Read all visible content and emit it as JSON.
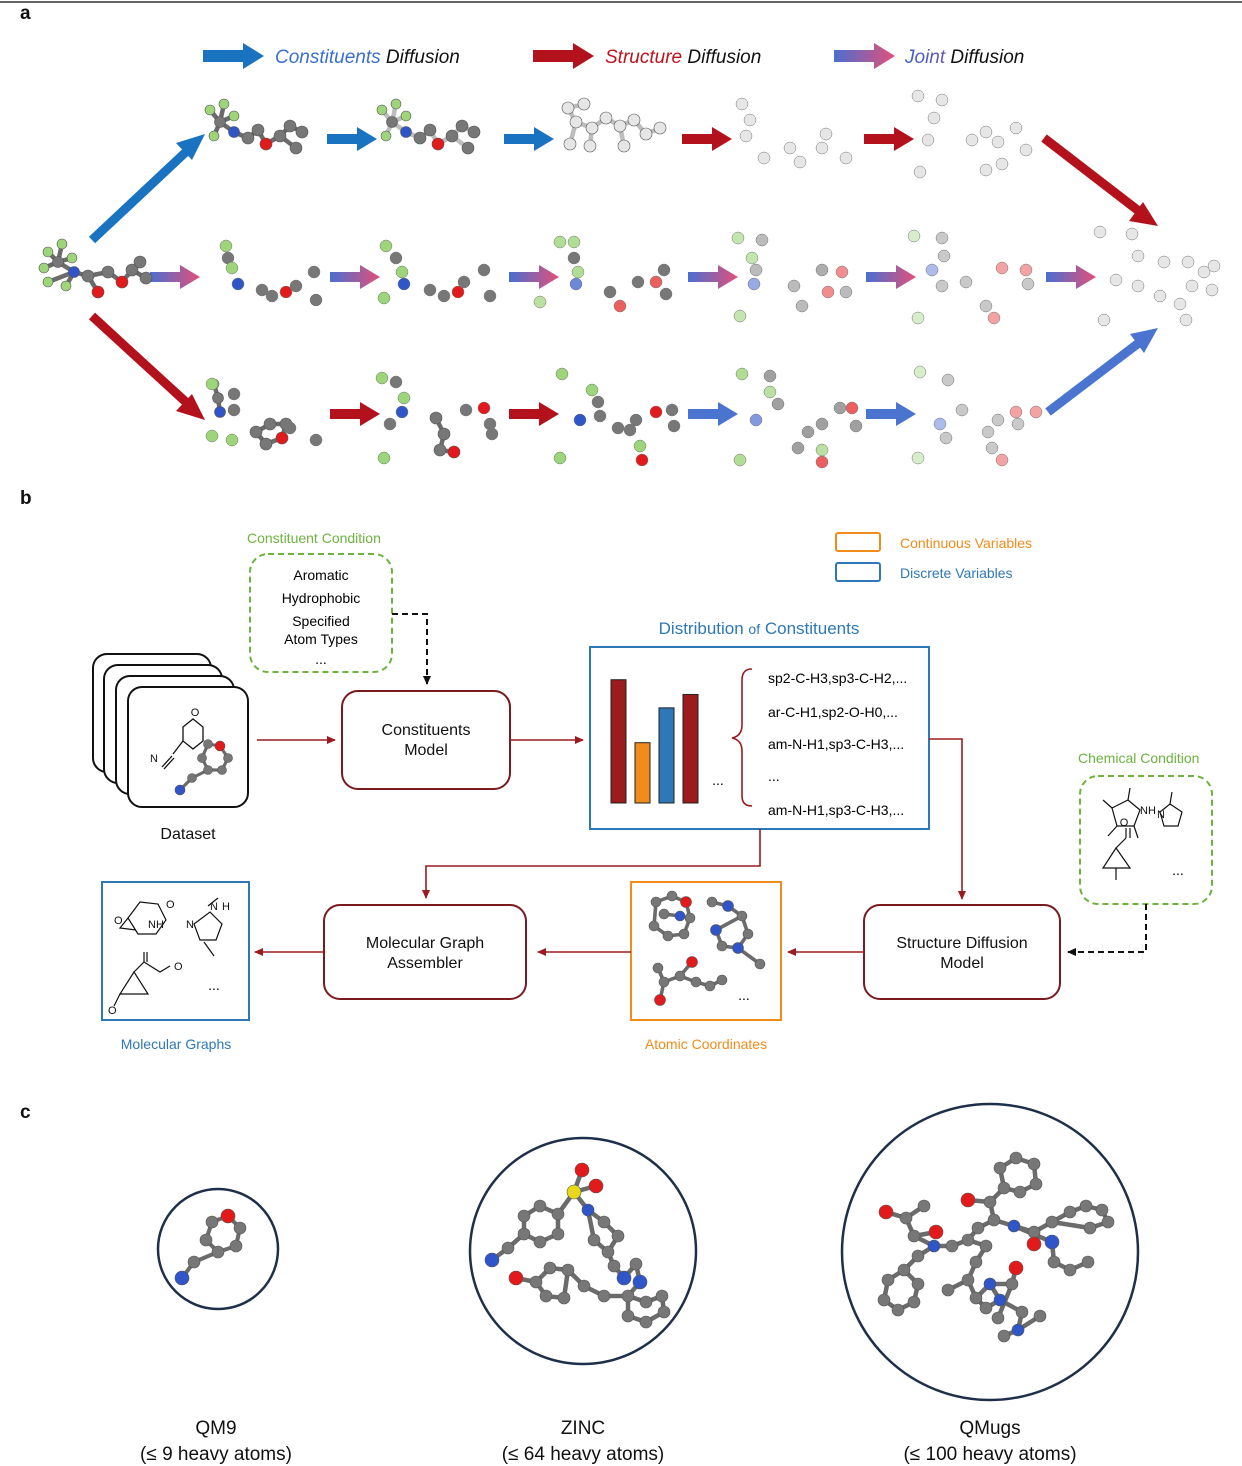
{
  "panels": {
    "a": "a",
    "b": "b",
    "c": "c"
  },
  "legend": {
    "constituents": {
      "italic": "Constituents",
      "plain": " Diffusion",
      "color": "#3a6fcf"
    },
    "structure": {
      "italic": "Structure",
      "plain": " Diffusion",
      "color": "#c0121e"
    },
    "joint": {
      "italic": "Joint",
      "plain": " Diffusion",
      "color": "#5a5fc8"
    }
  },
  "colors": {
    "constituent_arrow": "#1a73c1",
    "structure_arrow": "#b3121c",
    "box_border": "#7a1a1e",
    "continuous": "#f08c1a",
    "discrete": "#2f78b7",
    "condition_green": "#6db33f",
    "carbon": "#777777",
    "fluorine": "#9ed47a",
    "oxygen": "#e31a1c",
    "nitrogen": "#2f55c9",
    "sulfur": "#e6d91a"
  },
  "panel_b": {
    "constituent_condition": {
      "title": "Constituent Condition",
      "items": [
        "Aromatic",
        "Hydrophobic",
        "Specified",
        "Atom Types",
        "..."
      ]
    },
    "variable_legend": {
      "continuous": "Continuous Variables",
      "discrete": "Discrete Variables"
    },
    "dataset_label": "Dataset",
    "dataset_mol_label": "N",
    "constituents_model": [
      "Constituents",
      "Model"
    ],
    "distribution": {
      "title_prefix": "Distribution ",
      "title_of": "of",
      "title_suffix": " Constituents",
      "bar_values": [
        0.92,
        0.45,
        0.71,
        0.81
      ],
      "bar_colors": [
        "#9b1b1e",
        "#f08c1a",
        "#2f78b7",
        "#9b1b1e"
      ],
      "bar_ellipsis": "...",
      "entries": [
        "sp2-C-H3,sp3-C-H2,...",
        "ar-C-H1,sp2-O-H0,...",
        "am-N-H1,sp3-C-H3,...",
        "...",
        "am-N-H1,sp3-C-H3,..."
      ]
    },
    "chemical_condition": {
      "title": "Chemical Condition",
      "nh_label": "NH",
      "n_label": "N",
      "ellipsis": "..."
    },
    "structure_model": [
      "Structure Diffusion",
      "Model"
    ],
    "atomic_coordinates": {
      "title": "Atomic Coordinates",
      "ellipsis": "..."
    },
    "assembler": [
      "Molecular Graph",
      "Assembler"
    ],
    "molecular_graphs": {
      "title": "Molecular Graphs",
      "nh": "NH",
      "o": "O",
      "n": "N",
      "ellipsis": "..."
    }
  },
  "panel_c": {
    "items": [
      {
        "name": "QM9",
        "range": "(≤ 9 heavy atoms)"
      },
      {
        "name": "ZINC",
        "range": "(≤ 64 heavy atoms)"
      },
      {
        "name": "QMugs",
        "range": "(≤ 100 heavy atoms)"
      }
    ]
  }
}
